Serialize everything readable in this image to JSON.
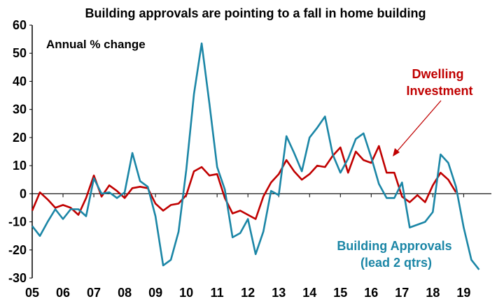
{
  "chart_data": {
    "type": "line",
    "title": "Building approvals are pointing to a fall in home building",
    "annotation": "Annual % change",
    "ylim": [
      -30,
      60
    ],
    "yticks": [
      -30,
      -20,
      -10,
      0,
      10,
      20,
      30,
      40,
      50,
      60
    ],
    "xlim": [
      2005,
      2019.9
    ],
    "xticks": [
      "05",
      "06",
      "07",
      "08",
      "09",
      "10",
      "11",
      "12",
      "13",
      "14",
      "15",
      "16",
      "17",
      "18",
      "19"
    ],
    "grid": false,
    "series": [
      {
        "name": "Dwelling Investment",
        "name_lines": [
          "Dwelling",
          "Investment"
        ],
        "color": "#c00000",
        "x": [
          2005.0,
          2005.25,
          2005.5,
          2005.75,
          2006.0,
          2006.25,
          2006.5,
          2006.75,
          2007.0,
          2007.25,
          2007.5,
          2007.75,
          2008.0,
          2008.25,
          2008.5,
          2008.75,
          2009.0,
          2009.25,
          2009.5,
          2009.75,
          2010.0,
          2010.25,
          2010.5,
          2010.75,
          2011.0,
          2011.25,
          2011.5,
          2011.75,
          2012.0,
          2012.25,
          2012.5,
          2012.75,
          2013.0,
          2013.25,
          2013.5,
          2013.75,
          2014.0,
          2014.25,
          2014.5,
          2014.75,
          2015.0,
          2015.25,
          2015.5,
          2015.75,
          2016.0,
          2016.25,
          2016.5,
          2016.75,
          2017.0,
          2017.25,
          2017.5,
          2017.75,
          2018.0,
          2018.25,
          2018.5,
          2018.75
        ],
        "y": [
          -6,
          0.5,
          -2,
          -5,
          -4,
          -5,
          -7.5,
          -1.5,
          6.5,
          -1,
          3,
          1,
          -1.5,
          2,
          2.5,
          2,
          -3.5,
          -6,
          -4,
          -3.5,
          -0.5,
          8,
          9.5,
          6.5,
          7,
          -1.5,
          -7,
          -6,
          -7.5,
          -9,
          -1,
          4,
          7,
          12,
          8,
          5,
          7,
          10,
          9.5,
          13.5,
          16.5,
          7.5,
          15,
          12,
          11,
          17,
          7.5,
          7.5,
          -1,
          -3,
          -0.5,
          -3,
          3,
          7.5,
          5,
          0.5
        ]
      },
      {
        "name": "Building Approvals",
        "name_lines": [
          "Building Approvals",
          "(lead 2 qtrs)"
        ],
        "color": "#1b86a6",
        "x": [
          2005.0,
          2005.25,
          2005.5,
          2005.75,
          2006.0,
          2006.25,
          2006.5,
          2006.75,
          2007.0,
          2007.25,
          2007.5,
          2007.75,
          2008.0,
          2008.25,
          2008.5,
          2008.75,
          2009.0,
          2009.25,
          2009.5,
          2009.75,
          2010.0,
          2010.25,
          2010.5,
          2010.75,
          2011.0,
          2011.25,
          2011.5,
          2011.75,
          2012.0,
          2012.25,
          2012.5,
          2012.75,
          2013.0,
          2013.25,
          2013.5,
          2013.75,
          2014.0,
          2014.25,
          2014.5,
          2014.75,
          2015.0,
          2015.25,
          2015.5,
          2015.75,
          2016.0,
          2016.25,
          2016.5,
          2016.75,
          2017.0,
          2017.25,
          2017.5,
          2017.75,
          2018.0,
          2018.25,
          2018.5,
          2018.75,
          2019.0,
          2019.25,
          2019.5
        ],
        "y": [
          -11.5,
          -15,
          -10,
          -5.5,
          -9,
          -5.5,
          -5.5,
          -8,
          5.5,
          0,
          0.5,
          -1.5,
          0.5,
          14.5,
          4.5,
          2.5,
          -8,
          -25.5,
          -23.5,
          -13.5,
          8.5,
          35.5,
          53.5,
          32,
          9.5,
          1.5,
          -15.5,
          -14,
          -9,
          -21.5,
          -13.5,
          1,
          -0.5,
          20.5,
          14.5,
          8,
          20,
          23.5,
          27.5,
          14,
          7.5,
          12.5,
          19.5,
          21.5,
          13,
          3.5,
          -1.5,
          -1.5,
          4,
          -12,
          -11,
          -10,
          -6.5,
          14,
          11,
          2.5,
          -12,
          -23.5,
          -27
        ]
      }
    ]
  }
}
